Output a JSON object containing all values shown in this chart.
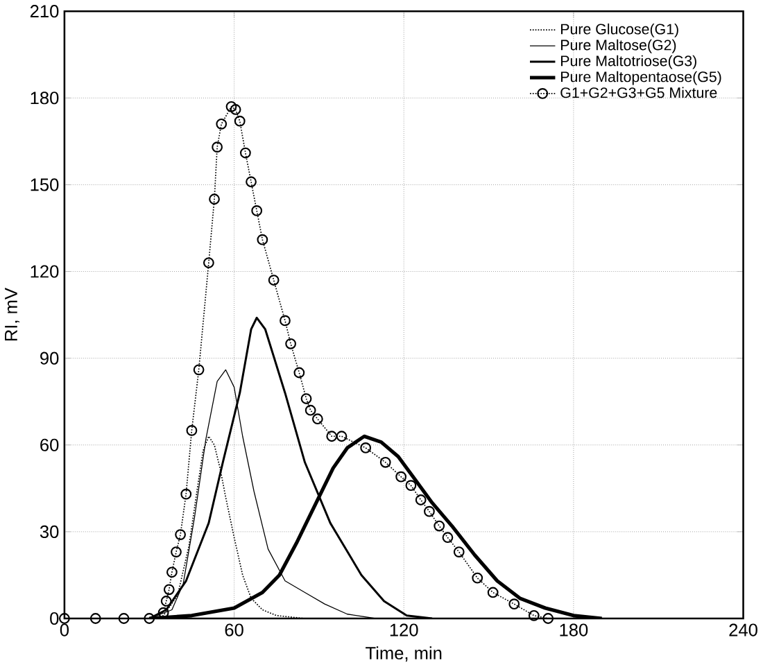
{
  "chart_data": {
    "type": "line",
    "xlabel": "Time, min",
    "ylabel": "RI, mV",
    "xlim": [
      0,
      240
    ],
    "ylim": [
      0,
      210
    ],
    "xticks": [
      0,
      60,
      120,
      180,
      240
    ],
    "yticks": [
      0,
      30,
      60,
      90,
      120,
      150,
      180,
      210
    ],
    "grid": true,
    "legend": "top right",
    "series": [
      {
        "name": "Pure Glucose(G1)",
        "color": "#000000",
        "line_style": "dotted",
        "marker": "none",
        "x": [
          30,
          35,
          40,
          44,
          47,
          49,
          51,
          53,
          55,
          57,
          60,
          63,
          66,
          70,
          75,
          85
        ],
        "values": [
          0,
          1,
          8,
          25,
          45,
          58,
          63,
          60,
          52,
          42,
          28,
          15,
          7,
          3,
          1,
          0
        ]
      },
      {
        "name": "Pure Maltose(G2)",
        "color": "#000000",
        "line_style": "solid",
        "marker": "none",
        "x": [
          30,
          38,
          42,
          46,
          50,
          54,
          57,
          60,
          63,
          67,
          72,
          78,
          85,
          92,
          100,
          110
        ],
        "values": [
          0,
          3,
          12,
          35,
          62,
          82,
          86,
          80,
          63,
          44,
          24,
          13,
          9,
          5,
          1.5,
          0
        ]
      },
      {
        "name": "Pure Maltotriose(G3)",
        "color": "#000000",
        "line_style": "solid",
        "marker": "none",
        "x": [
          30,
          36,
          43,
          51,
          56,
          62,
          66,
          68,
          71,
          78,
          85,
          94,
          105,
          113,
          121,
          130
        ],
        "values": [
          0,
          3,
          13,
          33,
          54,
          78,
          100,
          104,
          100,
          78,
          54,
          33,
          15,
          6,
          1,
          0
        ]
      },
      {
        "name": "Pure Maltopentaose(G5)",
        "color": "#000000",
        "line_style": "solid",
        "marker": "none",
        "x": [
          30,
          45,
          60,
          70,
          76,
          82,
          89,
          95,
          100,
          106,
          112,
          118,
          124,
          130,
          137,
          145,
          153,
          161,
          170,
          180,
          190
        ],
        "values": [
          0,
          1,
          3.6,
          9,
          15,
          26,
          40,
          52,
          59,
          63,
          61,
          56,
          48,
          40,
          32,
          22,
          13,
          7,
          3.6,
          1,
          0
        ]
      },
      {
        "name": "G1+G2+G3+G5 Mixture",
        "color": "#000000",
        "line_style": "dotted",
        "marker": "circle",
        "x": [
          0,
          11,
          21,
          30,
          35,
          36,
          37,
          38,
          39.5,
          41,
          43,
          45,
          47.5,
          51,
          53,
          54,
          55.5,
          59,
          60.5,
          62,
          64,
          66,
          68,
          70,
          74,
          78,
          80,
          83,
          85.5,
          87,
          89.5,
          94.5,
          98,
          106.5,
          113.5,
          119,
          122.5,
          126,
          129,
          132.5,
          135.5,
          139.5,
          146,
          151.5,
          159,
          166,
          171
        ],
        "values": [
          0,
          0,
          0,
          0,
          2,
          6,
          10,
          16,
          23,
          29,
          43,
          65,
          86,
          123,
          145,
          163,
          171,
          177,
          176,
          172,
          161,
          151,
          141,
          131,
          117,
          103,
          95,
          85,
          76,
          72,
          69,
          63,
          63,
          59,
          54,
          49,
          46,
          41,
          37,
          32,
          28,
          23,
          14,
          9,
          5,
          1,
          0
        ]
      }
    ]
  }
}
